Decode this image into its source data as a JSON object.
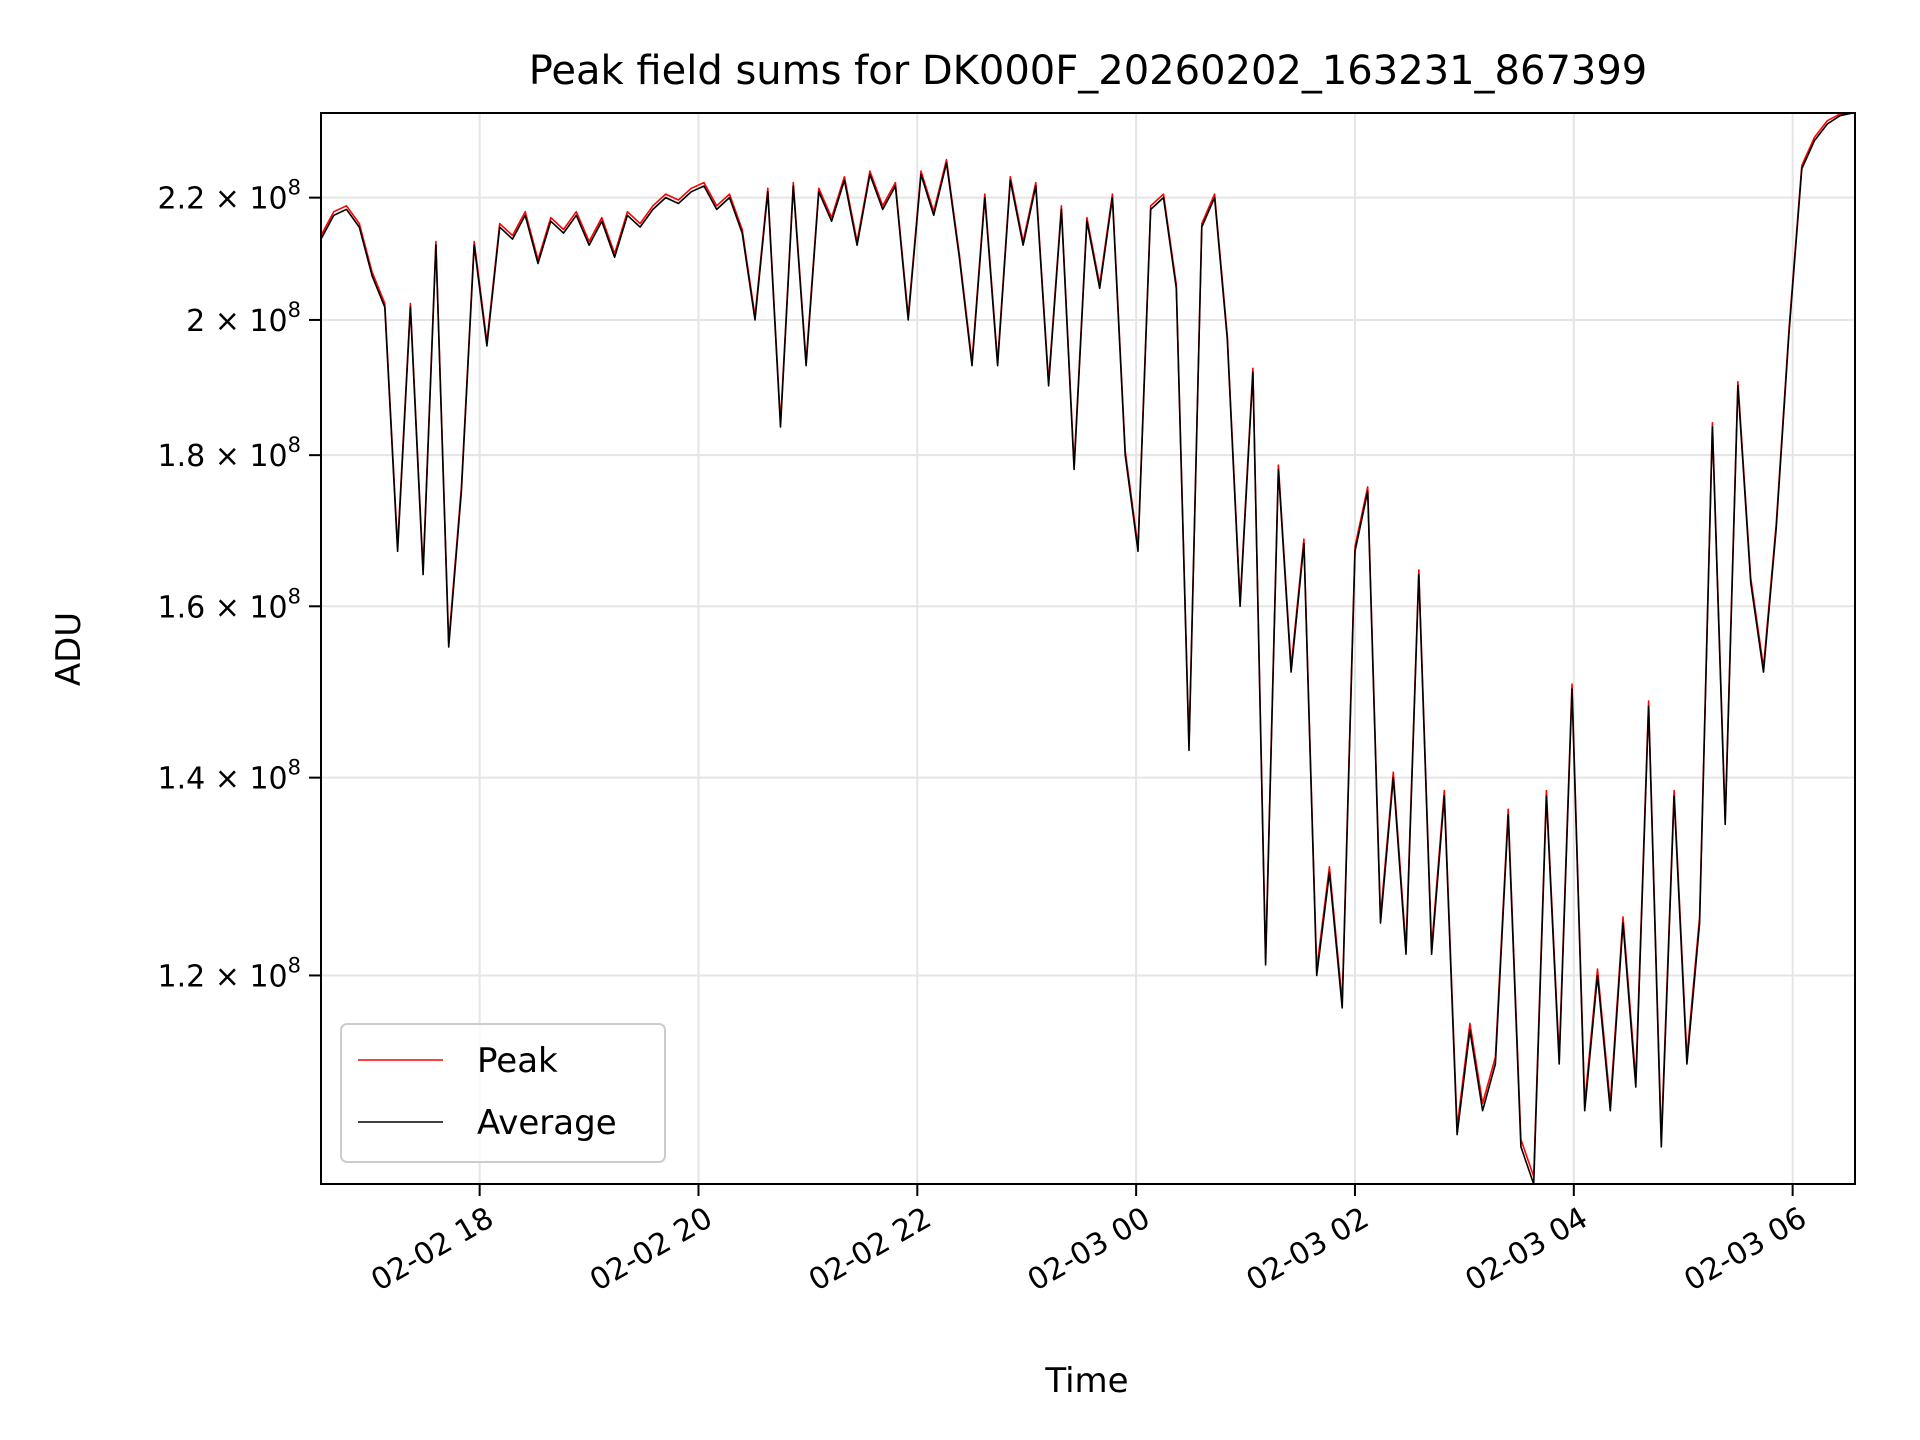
{
  "chart_data": {
    "type": "line",
    "title": "Peak field sums for DK000F_20260202_163231_867399",
    "xlabel": "Time",
    "ylabel": "ADU",
    "y_scale": "log",
    "y_unit_multiplier": 100000000,
    "ylim": [
      1.02,
      2.35
    ],
    "x_unit": "hours since 2026-02-02 00:00",
    "xlim": [
      16.55,
      30.57
    ],
    "x_start": 16.55,
    "x_step_minutes": 7,
    "grid": true,
    "legend_position": "lower-left",
    "x_ticks": [
      {
        "value": 18,
        "label": "02-02 18"
      },
      {
        "value": 20,
        "label": "02-02 20"
      },
      {
        "value": 22,
        "label": "02-02 22"
      },
      {
        "value": 24,
        "label": "02-03 00"
      },
      {
        "value": 26,
        "label": "02-03 02"
      },
      {
        "value": 28,
        "label": "02-03 04"
      },
      {
        "value": 30,
        "label": "02-03 06"
      }
    ],
    "y_ticks": [
      {
        "value": 2.2,
        "mantissa": "2.2",
        "exp": "8"
      },
      {
        "value": 2.0,
        "mantissa": "2",
        "exp": "8"
      },
      {
        "value": 1.8,
        "mantissa": "1.8",
        "exp": "8"
      },
      {
        "value": 1.6,
        "mantissa": "1.6",
        "exp": "8"
      },
      {
        "value": 1.4,
        "mantissa": "1.4",
        "exp": "8"
      },
      {
        "value": 1.2,
        "mantissa": "1.2",
        "exp": "8"
      }
    ],
    "times_label": "×",
    "tick_base": "10",
    "series": [
      {
        "name": "Peak",
        "color": "#ff0000",
        "values": [
          2.136,
          2.176,
          2.186,
          2.156,
          2.076,
          2.026,
          1.676,
          2.026,
          1.646,
          2.126,
          1.556,
          1.756,
          2.126,
          1.966,
          2.156,
          2.136,
          2.176,
          2.096,
          2.166,
          2.146,
          2.176,
          2.126,
          2.166,
          2.106,
          2.176,
          2.156,
          2.186,
          2.206,
          2.196,
          2.216,
          2.226,
          2.186,
          2.206,
          2.146,
          2.006,
          2.216,
          1.846,
          2.226,
          1.936,
          2.216,
          2.166,
          2.236,
          2.126,
          2.246,
          2.186,
          2.226,
          2.006,
          2.246,
          2.176,
          2.266,
          2.106,
          1.936,
          2.206,
          1.936,
          2.236,
          2.126,
          2.226,
          1.906,
          2.186,
          1.786,
          2.166,
          2.056,
          2.206,
          1.806,
          1.676,
          2.186,
          2.206,
          2.056,
          1.436,
          2.156,
          2.206,
          1.976,
          1.606,
          1.926,
          1.216,
          1.786,
          1.526,
          1.686,
          1.206,
          1.306,
          1.176,
          1.676,
          1.756,
          1.256,
          1.406,
          1.226,
          1.646,
          1.226,
          1.386,
          1.066,
          1.156,
          1.086,
          1.126,
          1.366,
          1.056,
          1.026,
          1.386,
          1.126,
          1.506,
          1.086,
          1.206,
          1.086,
          1.256,
          1.106,
          1.486,
          1.056,
          1.386,
          1.126,
          1.256,
          1.846,
          1.356,
          1.906,
          1.636,
          1.526,
          1.706,
          1.986,
          2.256,
          2.306,
          2.336,
          2.348,
          2.35
        ]
      },
      {
        "name": "Average",
        "color": "#000000",
        "values": [
          2.13,
          2.17,
          2.18,
          2.15,
          2.07,
          2.02,
          1.67,
          2.02,
          1.64,
          2.12,
          1.55,
          1.75,
          2.12,
          1.96,
          2.15,
          2.13,
          2.17,
          2.09,
          2.16,
          2.14,
          2.17,
          2.12,
          2.16,
          2.1,
          2.17,
          2.15,
          2.18,
          2.2,
          2.19,
          2.21,
          2.22,
          2.18,
          2.2,
          2.14,
          2.0,
          2.21,
          1.84,
          2.22,
          1.93,
          2.21,
          2.16,
          2.23,
          2.12,
          2.24,
          2.18,
          2.22,
          2.0,
          2.24,
          2.17,
          2.26,
          2.1,
          1.93,
          2.2,
          1.93,
          2.23,
          2.12,
          2.22,
          1.9,
          2.18,
          1.78,
          2.16,
          2.05,
          2.2,
          1.8,
          1.67,
          2.18,
          2.2,
          2.05,
          1.43,
          2.15,
          2.2,
          1.97,
          1.6,
          1.92,
          1.21,
          1.78,
          1.52,
          1.68,
          1.2,
          1.3,
          1.17,
          1.67,
          1.75,
          1.25,
          1.4,
          1.22,
          1.64,
          1.22,
          1.38,
          1.06,
          1.15,
          1.08,
          1.12,
          1.36,
          1.05,
          1.02,
          1.38,
          1.12,
          1.5,
          1.08,
          1.2,
          1.08,
          1.25,
          1.1,
          1.48,
          1.05,
          1.38,
          1.12,
          1.25,
          1.84,
          1.35,
          1.9,
          1.63,
          1.52,
          1.7,
          1.98,
          2.25,
          2.3,
          2.33,
          2.345,
          2.35
        ]
      }
    ]
  }
}
